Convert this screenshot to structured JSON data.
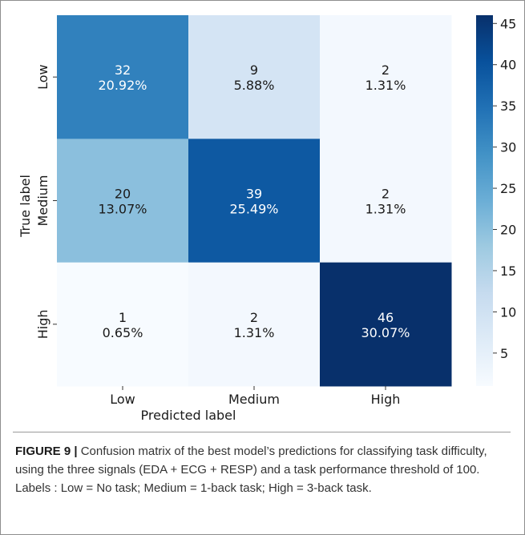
{
  "chart_data": {
    "type": "heatmap",
    "title": "",
    "xlabel": "Predicted label",
    "ylabel": "True label",
    "x_categories": [
      "Low",
      "Medium",
      "High"
    ],
    "y_categories": [
      "Low",
      "Medium",
      "High"
    ],
    "values": [
      [
        32,
        9,
        2
      ],
      [
        20,
        39,
        2
      ],
      [
        1,
        2,
        46
      ]
    ],
    "percentages": [
      [
        "20.92%",
        "5.88%",
        "1.31%"
      ],
      [
        "13.07%",
        "25.49%",
        "1.31%"
      ],
      [
        "0.65%",
        "1.31%",
        "30.07%"
      ]
    ],
    "colormap": "Blues",
    "vmin": 1,
    "vmax": 46,
    "colorbar_ticks": [
      5,
      10,
      15,
      20,
      25,
      30,
      35,
      40,
      45
    ]
  },
  "caption": {
    "label": "FIGURE 9 |",
    "text": "Confusion matrix of the best model’s predictions for classifying task difficulty, using the three signals (EDA + ECG + RESP) and a task performance threshold of 100. Labels : Low = No task; Medium = 1-back task; High = 3-back task."
  }
}
